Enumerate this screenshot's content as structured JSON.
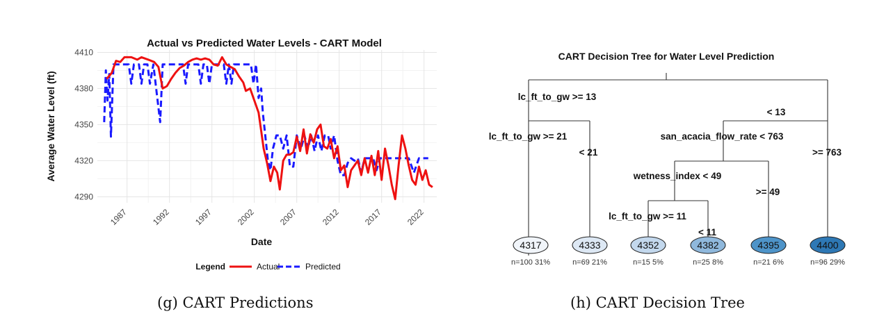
{
  "chart_data": [
    {
      "type": "line",
      "title": "Actual vs Predicted Water Levels - CART Model",
      "xlabel": "Date",
      "ylabel": "Average Water Level (ft)",
      "xlim": [
        1983.5,
        2023.5
      ],
      "ylim": [
        4285,
        4412
      ],
      "x_ticks": [
        1987,
        1992,
        1997,
        2002,
        2007,
        2012,
        2017,
        2022
      ],
      "y_ticks": [
        4290,
        4320,
        4350,
        4380,
        4410
      ],
      "grid": true,
      "legend": {
        "title": "Legend",
        "placement": "bottom"
      },
      "colors": {
        "actual": "#ee1111",
        "predicted": "#1a1aff"
      },
      "series": [
        {
          "name": "Actual",
          "style": "solid",
          "points": [
            [
              1984.6,
              4388
            ],
            [
              1985.2,
              4393
            ],
            [
              1985.7,
              4403
            ],
            [
              1986.2,
              4402
            ],
            [
              1986.7,
              4406
            ],
            [
              1987.5,
              4406
            ],
            [
              1988.2,
              4404
            ],
            [
              1988.7,
              4406
            ],
            [
              1989.5,
              4404
            ],
            [
              1990.2,
              4402
            ],
            [
              1990.7,
              4398
            ],
            [
              1991.2,
              4380
            ],
            [
              1991.7,
              4382
            ],
            [
              1992.2,
              4388
            ],
            [
              1992.7,
              4393
            ],
            [
              1993.2,
              4397
            ],
            [
              1993.7,
              4399
            ],
            [
              1994.2,
              4402
            ],
            [
              1994.7,
              4404
            ],
            [
              1995.2,
              4405
            ],
            [
              1995.7,
              4404
            ],
            [
              1996.2,
              4405
            ],
            [
              1996.7,
              4404
            ],
            [
              1997.2,
              4400
            ],
            [
              1997.7,
              4399
            ],
            [
              1998.2,
              4406
            ],
            [
              1998.7,
              4400
            ],
            [
              1999.2,
              4398
            ],
            [
              1999.7,
              4396
            ],
            [
              2000.2,
              4390
            ],
            [
              2000.7,
              4385
            ],
            [
              2001.0,
              4378
            ],
            [
              2001.5,
              4380
            ],
            [
              2002.0,
              4370
            ],
            [
              2002.5,
              4360
            ],
            [
              2002.8,
              4345
            ],
            [
              2003.1,
              4330
            ],
            [
              2003.5,
              4318
            ],
            [
              2003.9,
              4303
            ],
            [
              2004.3,
              4315
            ],
            [
              2004.7,
              4310
            ],
            [
              2005.0,
              4296
            ],
            [
              2005.4,
              4320
            ],
            [
              2005.8,
              4325
            ],
            [
              2006.2,
              4325
            ],
            [
              2006.6,
              4327
            ],
            [
              2007.0,
              4340
            ],
            [
              2007.4,
              4328
            ],
            [
              2007.8,
              4346
            ],
            [
              2008.2,
              4326
            ],
            [
              2008.6,
              4342
            ],
            [
              2009.0,
              4335
            ],
            [
              2009.4,
              4346
            ],
            [
              2009.8,
              4350
            ],
            [
              2010.2,
              4332
            ],
            [
              2010.6,
              4330
            ],
            [
              2011.0,
              4338
            ],
            [
              2011.4,
              4322
            ],
            [
              2011.8,
              4332
            ],
            [
              2012.2,
              4312
            ],
            [
              2012.6,
              4316
            ],
            [
              2013.0,
              4298
            ],
            [
              2013.4,
              4312
            ],
            [
              2013.8,
              4316
            ],
            [
              2014.2,
              4320
            ],
            [
              2014.6,
              4308
            ],
            [
              2015.0,
              4322
            ],
            [
              2015.4,
              4310
            ],
            [
              2015.8,
              4324
            ],
            [
              2016.2,
              4308
            ],
            [
              2016.6,
              4328
            ],
            [
              2017.0,
              4304
            ],
            [
              2017.4,
              4330
            ],
            [
              2017.8,
              4316
            ],
            [
              2018.2,
              4300
            ],
            [
              2018.6,
              4288
            ],
            [
              2019.0,
              4316
            ],
            [
              2019.4,
              4341
            ],
            [
              2019.8,
              4330
            ],
            [
              2020.2,
              4316
            ],
            [
              2020.6,
              4304
            ],
            [
              2021.0,
              4300
            ],
            [
              2021.4,
              4315
            ],
            [
              2021.8,
              4304
            ],
            [
              2022.2,
              4312
            ],
            [
              2022.6,
              4300
            ],
            [
              2023.0,
              4298
            ]
          ]
        },
        {
          "name": "Predicted",
          "style": "dashed",
          "points": [
            [
              1984.3,
              4352
            ],
            [
              1984.5,
              4395
            ],
            [
              1984.7,
              4370
            ],
            [
              1984.9,
              4392
            ],
            [
              1985.1,
              4340
            ],
            [
              1985.4,
              4400
            ],
            [
              1986.5,
              4400
            ],
            [
              1987.2,
              4400
            ],
            [
              1987.5,
              4384
            ],
            [
              1987.8,
              4400
            ],
            [
              1988.4,
              4400
            ],
            [
              1988.7,
              4384
            ],
            [
              1989.0,
              4400
            ],
            [
              1989.4,
              4400
            ],
            [
              1989.7,
              4384
            ],
            [
              1990.1,
              4400
            ],
            [
              1990.6,
              4370
            ],
            [
              1990.9,
              4352
            ],
            [
              1991.2,
              4400
            ],
            [
              1993.6,
              4400
            ],
            [
              1993.9,
              4384
            ],
            [
              1994.2,
              4400
            ],
            [
              1995.4,
              4400
            ],
            [
              1995.7,
              4384
            ],
            [
              1996.0,
              4400
            ],
            [
              1996.4,
              4400
            ],
            [
              1996.7,
              4384
            ],
            [
              1997.0,
              4400
            ],
            [
              1998.4,
              4400
            ],
            [
              1998.7,
              4384
            ],
            [
              1999.0,
              4400
            ],
            [
              1999.3,
              4384
            ],
            [
              1999.6,
              4400
            ],
            [
              2001.6,
              4400
            ],
            [
              2001.9,
              4384
            ],
            [
              2002.2,
              4400
            ],
            [
              2002.5,
              4372
            ],
            [
              2002.8,
              4380
            ],
            [
              2003.0,
              4360
            ],
            [
              2003.3,
              4340
            ],
            [
              2003.6,
              4320
            ],
            [
              2003.9,
              4312
            ],
            [
              2004.2,
              4330
            ],
            [
              2004.6,
              4341
            ],
            [
              2005.0,
              4341
            ],
            [
              2005.4,
              4330
            ],
            [
              2005.8,
              4341
            ],
            [
              2006.2,
              4315
            ],
            [
              2006.6,
              4315
            ],
            [
              2007.0,
              4341
            ],
            [
              2007.5,
              4330
            ],
            [
              2007.9,
              4341
            ],
            [
              2008.3,
              4330
            ],
            [
              2008.7,
              4341
            ],
            [
              2009.1,
              4328
            ],
            [
              2009.5,
              4341
            ],
            [
              2009.9,
              4328
            ],
            [
              2010.3,
              4341
            ],
            [
              2010.7,
              4341
            ],
            [
              2011.0,
              4330
            ],
            [
              2011.4,
              4341
            ],
            [
              2011.8,
              4320
            ],
            [
              2012.2,
              4308
            ],
            [
              2012.6,
              4308
            ],
            [
              2013.0,
              4318
            ],
            [
              2013.4,
              4322
            ],
            [
              2013.8,
              4320
            ],
            [
              2014.2,
              4322
            ],
            [
              2014.6,
              4310
            ],
            [
              2015.0,
              4322
            ],
            [
              2016.0,
              4322
            ],
            [
              2016.4,
              4312
            ],
            [
              2016.8,
              4322
            ],
            [
              2017.6,
              4322
            ],
            [
              2018.0,
              4322
            ],
            [
              2018.4,
              4322
            ],
            [
              2019.0,
              4322
            ],
            [
              2019.6,
              4322
            ],
            [
              2020.2,
              4322
            ],
            [
              2020.8,
              4310
            ],
            [
              2021.4,
              4322
            ],
            [
              2022.5,
              4322
            ]
          ]
        }
      ]
    },
    {
      "type": "diagram",
      "title": "CART Decision Tree for Water Level Prediction",
      "split_labels": {
        "root_left": "lc_ft_to_gw >= 13",
        "root_right": "< 13",
        "a_left": "lc_ft_to_gw >= 21",
        "a_right": "< 21",
        "b_left": "san_acacia_flow_rate < 763",
        "b_right": ">= 763",
        "c_left": "wetness_index < 49",
        "c_right": ">= 49",
        "d_left": "lc_ft_to_gw >= 11",
        "d_right": "< 11"
      },
      "leaves": [
        {
          "value": "4317",
          "info": "n=100  31%",
          "color": "#f1f5fa"
        },
        {
          "value": "4333",
          "info": "n=69  21%",
          "color": "#dde8f4"
        },
        {
          "value": "4352",
          "info": "n=15  5%",
          "color": "#c3d8ed"
        },
        {
          "value": "4382",
          "info": "n=25  8%",
          "color": "#8fb8dc"
        },
        {
          "value": "4395",
          "info": "n=21  6%",
          "color": "#4e94c9"
        },
        {
          "value": "4400",
          "info": "n=96  29%",
          "color": "#2e78b5"
        }
      ]
    }
  ],
  "captions": {
    "left": "(g) CART Predictions",
    "right": "(h) CART Decision Tree"
  }
}
